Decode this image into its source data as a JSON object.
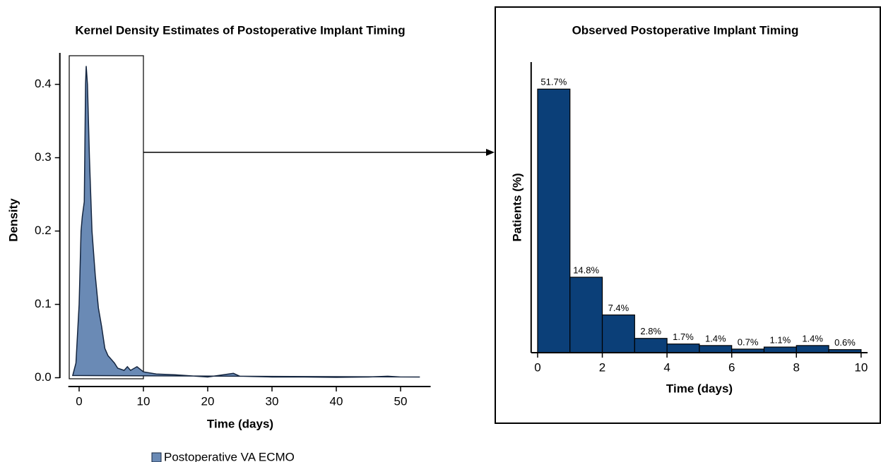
{
  "chart_data": [
    {
      "type": "area",
      "title": "Kernel Density Estimates of Postoperative Implant Timing",
      "x_label": "Time (days)",
      "y_label": "Density",
      "x": [
        -1,
        -0.5,
        0,
        0.3,
        0.5,
        0.8,
        1.0,
        1.1,
        1.3,
        1.6,
        2,
        2.5,
        3,
        3.5,
        4,
        4.5,
        5,
        5.5,
        6,
        7,
        7.5,
        8,
        9,
        10,
        12,
        15,
        20,
        24,
        25,
        30,
        35,
        40,
        45,
        48,
        50,
        53
      ],
      "series": [
        {
          "name": "Postoperative VA ECMO",
          "color": "#6a8ab5",
          "values": [
            0.003,
            0.02,
            0.1,
            0.2,
            0.22,
            0.24,
            0.4,
            0.425,
            0.4,
            0.3,
            0.2,
            0.14,
            0.095,
            0.07,
            0.04,
            0.03,
            0.025,
            0.02,
            0.013,
            0.01,
            0.015,
            0.01,
            0.015,
            0.008,
            0.005,
            0.004,
            0.001,
            0.006,
            0.002,
            0.001,
            0.001,
            0.0005,
            0.001,
            0.002,
            0.001,
            0.001
          ]
        }
      ],
      "xlim": [
        -3,
        55
      ],
      "xticks": [
        0,
        10,
        20,
        30,
        40,
        50
      ],
      "ylim": [
        -0.012,
        0.44
      ],
      "yticks": [
        {
          "value": 0,
          "label": "0.0"
        },
        0.1,
        0.2,
        0.3,
        0.4
      ],
      "legend": "bottom"
    },
    {
      "type": "histogram",
      "title": "Observed Postoperative Implant Timing",
      "x_label": "Time (days)",
      "y_label": "Patients (%)",
      "bins": [
        0,
        1,
        2,
        3,
        4,
        5,
        6,
        7,
        8,
        9,
        10
      ],
      "values": [
        51.7,
        14.8,
        7.4,
        2.8,
        1.7,
        1.4,
        0.7,
        1.1,
        1.4,
        0.6
      ],
      "value_labels": [
        "51.7%",
        "14.8%",
        "7.4%",
        "2.8%",
        "1.7%",
        "1.4%",
        "0.7%",
        "1.1%",
        "1.4%",
        "0.6%"
      ],
      "color": "#0b3f78",
      "xlim": [
        -0.2,
        10.2
      ],
      "xticks": [
        0,
        2,
        4,
        6,
        8,
        10
      ],
      "ylim": [
        0,
        57
      ]
    }
  ]
}
